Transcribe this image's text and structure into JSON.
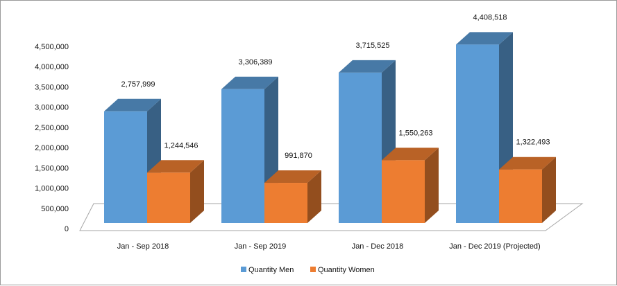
{
  "chart_data": {
    "type": "bar",
    "title": "",
    "xlabel": "",
    "ylabel": "",
    "ylim": [
      0,
      4500000
    ],
    "yticks": [
      "0",
      "500,000",
      "1,000,000",
      "1,500,000",
      "2,000,000",
      "2,500,000",
      "3,000,000",
      "3,500,000",
      "4,000,000",
      "4,500,000"
    ],
    "categories": [
      "Jan - Sep 2018",
      "Jan - Sep 2019",
      "Jan - Dec 2018",
      "Jan - Dec 2019 (Projected)"
    ],
    "series": [
      {
        "name": "Quantity Men",
        "values": [
          2757999,
          3306389,
          3715525,
          4408518
        ],
        "labels": [
          "2,757,999",
          "3,306,389",
          "3,715,525",
          "4,408,518"
        ],
        "color": "#5b9bd5"
      },
      {
        "name": "Quantity Women",
        "values": [
          1244546,
          991870,
          1550263,
          1322493
        ],
        "labels": [
          "1,244,546",
          "991,870",
          "1,550,263",
          "1,322,493"
        ],
        "color": "#ed7d31"
      }
    ],
    "legend_position": "bottom",
    "grid": false,
    "style": "3d-clustered-column"
  }
}
